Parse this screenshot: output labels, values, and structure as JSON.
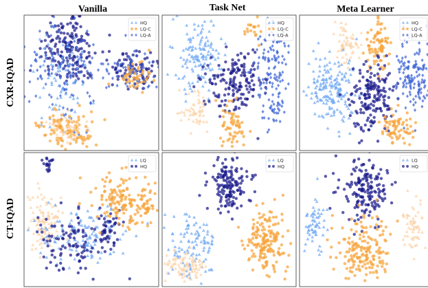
{
  "figure": {
    "column_titles": [
      "Vanilla",
      "Task Net",
      "Meta Learner"
    ],
    "row_titles": [
      "CXR-IQAD",
      "CT-IQAD"
    ]
  },
  "chart_data": [
    {
      "type": "scatter",
      "row": "CXR-IQAD",
      "column": "Vanilla",
      "legend": [
        {
          "label": "HQ",
          "marker": "triangle",
          "color": "#6fa8f2"
        },
        {
          "label": "LQ-C",
          "marker": "circle",
          "color": "#f7a43a"
        },
        {
          "label": "LQ-A",
          "marker": "diamond",
          "color": "#3a63d4"
        }
      ],
      "clusters": [
        {
          "color": "#1a1a8c",
          "marker": "circle",
          "cx": 0.33,
          "cy": 0.25,
          "sx": 0.11,
          "sy": 0.14,
          "n": 170
        },
        {
          "color": "#3a63d4",
          "marker": "diamond",
          "cx": 0.3,
          "cy": 0.4,
          "sx": 0.12,
          "sy": 0.2,
          "n": 130
        },
        {
          "color": "#6fa8f2",
          "marker": "triangle",
          "cx": 0.28,
          "cy": 0.5,
          "sx": 0.1,
          "sy": 0.18,
          "n": 70
        },
        {
          "color": "#f7a43a",
          "marker": "circle",
          "cx": 0.32,
          "cy": 0.84,
          "sx": 0.1,
          "sy": 0.06,
          "n": 110
        },
        {
          "color": "#fbd2a8",
          "marker": "triangle",
          "cx": 0.33,
          "cy": 0.84,
          "sx": 0.08,
          "sy": 0.05,
          "n": 50
        },
        {
          "color": "#1a1a8c",
          "marker": "circle",
          "cx": 0.82,
          "cy": 0.4,
          "sx": 0.09,
          "sy": 0.07,
          "n": 80
        },
        {
          "color": "#3a63d4",
          "marker": "diamond",
          "cx": 0.8,
          "cy": 0.42,
          "sx": 0.09,
          "sy": 0.07,
          "n": 70
        },
        {
          "color": "#f7a43a",
          "marker": "circle",
          "cx": 0.82,
          "cy": 0.44,
          "sx": 0.08,
          "sy": 0.06,
          "n": 45
        }
      ]
    },
    {
      "type": "scatter",
      "row": "CXR-IQAD",
      "column": "Task Net",
      "legend": [
        {
          "label": "HQ",
          "marker": "triangle",
          "color": "#6fa8f2"
        },
        {
          "label": "LQ-C",
          "marker": "circle",
          "color": "#f7a43a"
        },
        {
          "label": "LQ-A",
          "marker": "diamond",
          "color": "#3a63d4"
        }
      ],
      "clusters": [
        {
          "color": "#6fa8f2",
          "marker": "triangle",
          "cx": 0.27,
          "cy": 0.3,
          "sx": 0.09,
          "sy": 0.14,
          "n": 140
        },
        {
          "color": "#1a1a8c",
          "marker": "circle",
          "cx": 0.55,
          "cy": 0.5,
          "sx": 0.1,
          "sy": 0.12,
          "n": 160
        },
        {
          "color": "#3a63d4",
          "marker": "diamond",
          "cx": 0.83,
          "cy": 0.45,
          "sx": 0.07,
          "sy": 0.2,
          "n": 140
        },
        {
          "color": "#fbd2a8",
          "marker": "triangle",
          "cx": 0.25,
          "cy": 0.72,
          "sx": 0.06,
          "sy": 0.07,
          "n": 55
        },
        {
          "color": "#f7a43a",
          "marker": "circle",
          "cx": 0.53,
          "cy": 0.82,
          "sx": 0.04,
          "sy": 0.09,
          "n": 60
        },
        {
          "color": "#f7a43a",
          "marker": "circle",
          "cx": 0.68,
          "cy": 0.12,
          "sx": 0.04,
          "sy": 0.04,
          "n": 18
        }
      ]
    },
    {
      "type": "scatter",
      "row": "CXR-IQAD",
      "column": "Meta Learner",
      "legend": [
        {
          "label": "HQ",
          "marker": "triangle",
          "color": "#6fa8f2"
        },
        {
          "label": "LQ-C",
          "marker": "circle",
          "color": "#f7a43a"
        },
        {
          "label": "LQ-A",
          "marker": "diamond",
          "color": "#3a63d4"
        }
      ],
      "clusters": [
        {
          "color": "#fbd2a8",
          "marker": "triangle",
          "cx": 0.36,
          "cy": 0.22,
          "sx": 0.05,
          "sy": 0.07,
          "n": 60
        },
        {
          "color": "#f7a43a",
          "marker": "circle",
          "cx": 0.6,
          "cy": 0.22,
          "sx": 0.05,
          "sy": 0.1,
          "n": 80
        },
        {
          "color": "#6fa8f2",
          "marker": "triangle",
          "cx": 0.25,
          "cy": 0.55,
          "sx": 0.09,
          "sy": 0.13,
          "n": 180
        },
        {
          "color": "#1a1a8c",
          "marker": "circle",
          "cx": 0.55,
          "cy": 0.62,
          "sx": 0.08,
          "sy": 0.13,
          "n": 170
        },
        {
          "color": "#3a63d4",
          "marker": "diamond",
          "cx": 0.88,
          "cy": 0.45,
          "sx": 0.07,
          "sy": 0.14,
          "n": 150
        },
        {
          "color": "#f7a43a",
          "marker": "circle",
          "cx": 0.75,
          "cy": 0.84,
          "sx": 0.06,
          "sy": 0.06,
          "n": 70
        }
      ]
    },
    {
      "type": "scatter",
      "row": "CT-IQAD",
      "column": "Vanilla",
      "legend": [
        {
          "label": "LQ",
          "marker": "triangle",
          "color": "#6fa8f2"
        },
        {
          "label": "HQ",
          "marker": "circle",
          "color": "#1a1a8c"
        }
      ],
      "clusters": [
        {
          "color": "#1a1a8c",
          "marker": "circle",
          "cx": 0.18,
          "cy": 0.09,
          "sx": 0.025,
          "sy": 0.03,
          "n": 18
        },
        {
          "color": "#fbd2a8",
          "marker": "triangle",
          "cx": 0.15,
          "cy": 0.52,
          "sx": 0.07,
          "sy": 0.11,
          "n": 110
        },
        {
          "color": "#6fa8f2",
          "marker": "triangle",
          "cx": 0.45,
          "cy": 0.62,
          "sx": 0.18,
          "sy": 0.11,
          "n": 130
        },
        {
          "color": "#1a1a8c",
          "marker": "circle",
          "cx": 0.35,
          "cy": 0.68,
          "sx": 0.12,
          "sy": 0.12,
          "n": 100
        },
        {
          "color": "#1a1a8c",
          "marker": "circle",
          "cx": 0.62,
          "cy": 0.56,
          "sx": 0.08,
          "sy": 0.08,
          "n": 45
        },
        {
          "color": "#f7a43a",
          "marker": "circle",
          "cx": 0.72,
          "cy": 0.36,
          "sx": 0.1,
          "sy": 0.1,
          "n": 130
        },
        {
          "color": "#f7a43a",
          "marker": "circle",
          "cx": 0.9,
          "cy": 0.38,
          "sx": 0.04,
          "sy": 0.07,
          "n": 35
        }
      ]
    },
    {
      "type": "scatter",
      "row": "CT-IQAD",
      "column": "Task Net",
      "legend": [
        {
          "label": "LQ",
          "marker": "triangle",
          "color": "#6fa8f2"
        },
        {
          "label": "HQ",
          "marker": "circle",
          "color": "#1a1a8c"
        }
      ],
      "clusters": [
        {
          "color": "#1a1a8c",
          "marker": "circle",
          "cx": 0.5,
          "cy": 0.24,
          "sx": 0.08,
          "sy": 0.1,
          "n": 150
        },
        {
          "color": "#f7a43a",
          "marker": "circle",
          "cx": 0.77,
          "cy": 0.66,
          "sx": 0.08,
          "sy": 0.1,
          "n": 170
        },
        {
          "color": "#6fa8f2",
          "marker": "triangle",
          "cx": 0.22,
          "cy": 0.68,
          "sx": 0.1,
          "sy": 0.12,
          "n": 110
        },
        {
          "color": "#fbd2a8",
          "marker": "triangle",
          "cx": 0.18,
          "cy": 0.84,
          "sx": 0.08,
          "sy": 0.05,
          "n": 90
        }
      ]
    },
    {
      "type": "scatter",
      "row": "CT-IQAD",
      "column": "Meta Learner",
      "legend": [
        {
          "label": "LQ",
          "marker": "triangle",
          "color": "#6fa8f2"
        },
        {
          "label": "HQ",
          "marker": "circle",
          "color": "#1a1a8c"
        }
      ],
      "clusters": [
        {
          "color": "#1a1a8c",
          "marker": "circle",
          "cx": 0.5,
          "cy": 0.28,
          "sx": 0.09,
          "sy": 0.11,
          "n": 170
        },
        {
          "color": "#f7a43a",
          "marker": "circle",
          "cx": 0.49,
          "cy": 0.74,
          "sx": 0.1,
          "sy": 0.11,
          "n": 170
        },
        {
          "color": "#6fa8f2",
          "marker": "triangle",
          "cx": 0.11,
          "cy": 0.55,
          "sx": 0.04,
          "sy": 0.11,
          "n": 60
        },
        {
          "color": "#fbd2a8",
          "marker": "triangle",
          "cx": 0.88,
          "cy": 0.55,
          "sx": 0.04,
          "sy": 0.1,
          "n": 60
        }
      ]
    }
  ]
}
